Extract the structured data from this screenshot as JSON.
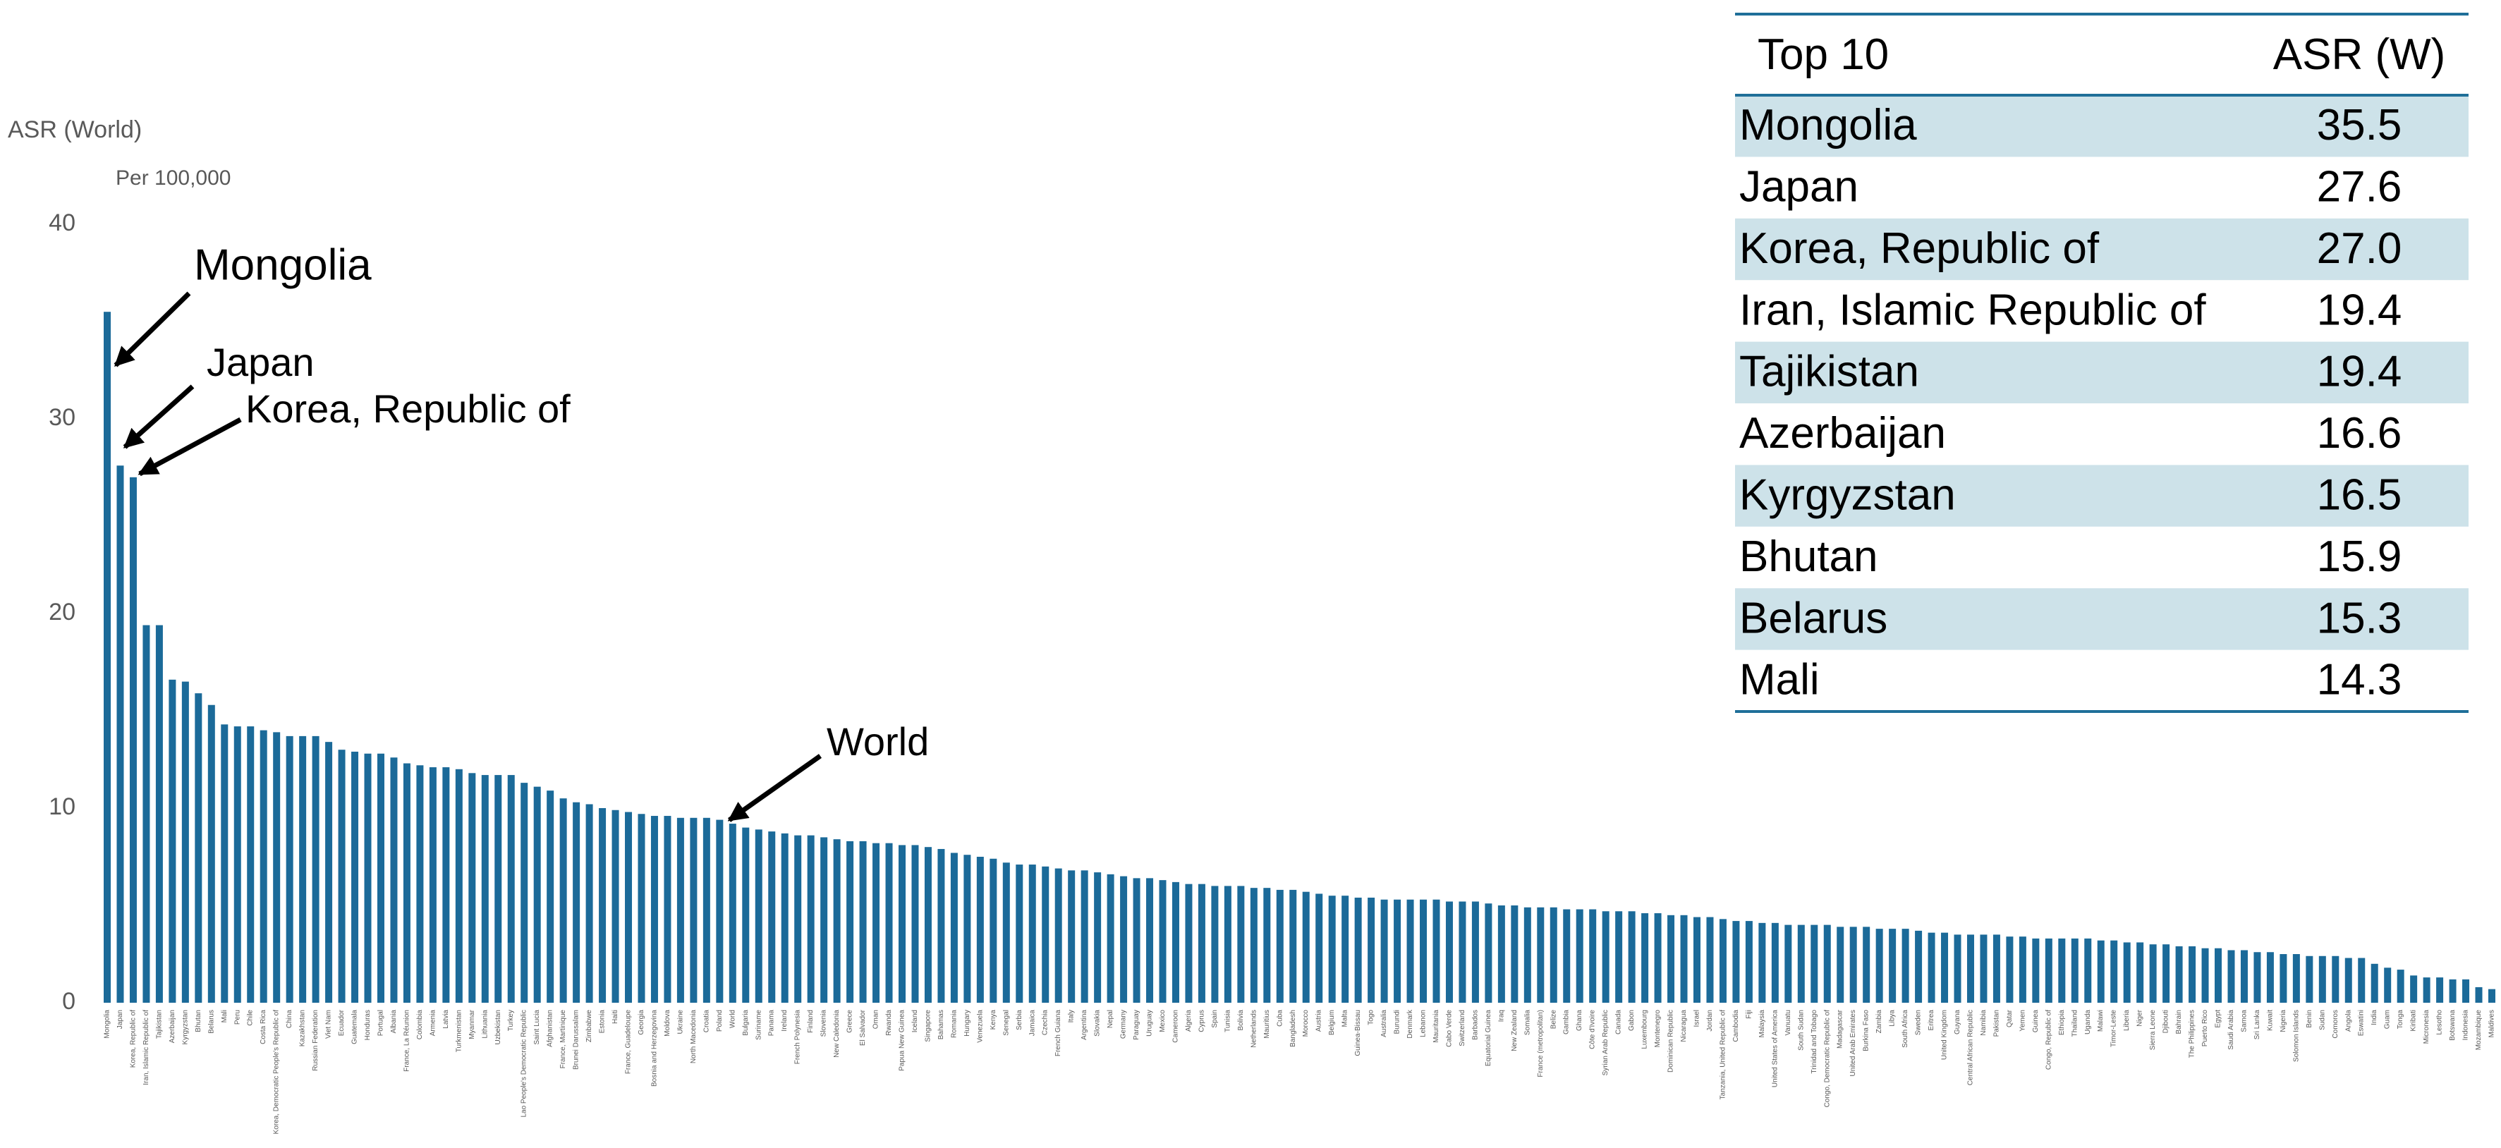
{
  "chart_data": {
    "type": "bar",
    "y_label": "ASR (World)",
    "unit_label": "Per 100,000",
    "color": "#1b6a99",
    "ylim": [
      0,
      40
    ],
    "yticks": [
      0,
      10,
      20,
      30,
      40
    ],
    "annotations": [
      "Mongolia",
      "Japan",
      "Korea, Republic of",
      "World"
    ],
    "categories": [
      "Mongolia",
      "Japan",
      "Korea, Republic of",
      "Iran, Islamic Republic of",
      "Tajikistan",
      "Azerbaijan",
      "Kyrgyzstan",
      "Bhutan",
      "Belarus",
      "Mali",
      "Peru",
      "Chile",
      "Costa Rica",
      "Korea, Democratic People's Republic of",
      "China",
      "Kazakhstan",
      "Russian Federation",
      "Viet Nam",
      "Ecuador",
      "Guatemala",
      "Honduras",
      "Portugal",
      "Albania",
      "France, La Réunion",
      "Colombia",
      "Armenia",
      "Latvia",
      "Turkmenistan",
      "Myanmar",
      "Lithuania",
      "Uzbekistan",
      "Turkey",
      "Lao People's Democratic Republic",
      "Saint Lucia",
      "Afghanistan",
      "France, Martinique",
      "Brunei Darussalam",
      "Zimbabwe",
      "Estonia",
      "Haiti",
      "France, Guadeloupe",
      "Georgia",
      "Bosnia and Herzegovina",
      "Moldova",
      "Ukraine",
      "North Macedonia",
      "Croatia",
      "Poland",
      "World",
      "Bulgaria",
      "Suriname",
      "Panama",
      "Ireland",
      "French Polynesia",
      "Finland",
      "Slovenia",
      "New Caledonia",
      "Greece",
      "El Salvador",
      "Oman",
      "Rwanda",
      "Papua New Guinea",
      "Iceland",
      "Singapore",
      "Bahamas",
      "Romania",
      "Hungary",
      "Venezuela",
      "Kenya",
      "Senegal",
      "Serbia",
      "Jamaica",
      "Czechia",
      "French Guiana",
      "Italy",
      "Argentina",
      "Slovakia",
      "Nepal",
      "Germany",
      "Paraguay",
      "Uruguay",
      "Mexico",
      "Cameroon",
      "Algeria",
      "Cyprus",
      "Spain",
      "Tunisia",
      "Bolivia",
      "Netherlands",
      "Mauritius",
      "Cuba",
      "Bangladesh",
      "Morocco",
      "Austria",
      "Belgium",
      "Malta",
      "Guinea-Bissau",
      "Togo",
      "Australia",
      "Burundi",
      "Denmark",
      "Lebanon",
      "Mauritania",
      "Cabo Verde",
      "Switzerland",
      "Barbados",
      "Equatorial Guinea",
      "Iraq",
      "New Zealand",
      "Somalia",
      "France (metropolitan)",
      "Belize",
      "Gambia",
      "Ghana",
      "Côte d'Ivoire",
      "Syrian Arab Republic",
      "Canada",
      "Gabon",
      "Luxembourg",
      "Montenegro",
      "Dominican Republic",
      "Nicaragua",
      "Israel",
      "Jordan",
      "Tanzania, United Republic of",
      "Cambodia",
      "Fiji",
      "Malaysia",
      "United States of America",
      "Vanuatu",
      "South Sudan",
      "Trinidad and Tobago",
      "Congo, Democratic Republic of",
      "Madagascar",
      "United Arab Emirates",
      "Burkina Faso",
      "Zambia",
      "Libya",
      "South Africa",
      "Sweden",
      "Eritrea",
      "United Kingdom",
      "Guyana",
      "Central African Republic",
      "Namibia",
      "Pakistan",
      "Qatar",
      "Yemen",
      "Guinea",
      "Congo, Republic of",
      "Ethiopia",
      "Thailand",
      "Uganda",
      "Malawi",
      "Timor-Leste",
      "Liberia",
      "Niger",
      "Sierra Leone",
      "Djibouti",
      "Bahrain",
      "The Philippines",
      "Puerto Rico",
      "Egypt",
      "Saudi Arabia",
      "Samoa",
      "Sri Lanka",
      "Kuwait",
      "Nigeria",
      "Solomon Islands",
      "Benin",
      "Sudan",
      "Comoros",
      "Angola",
      "Eswatini",
      "India",
      "Guam",
      "Tonga",
      "Kiribati",
      "Micronesia",
      "Lesotho",
      "Botswana",
      "Indonesia",
      "Mozambique",
      "Maldives"
    ],
    "values": [
      35.5,
      27.6,
      27.0,
      19.4,
      19.4,
      16.6,
      16.5,
      15.9,
      15.3,
      14.3,
      14.2,
      14.2,
      14.0,
      13.9,
      13.7,
      13.7,
      13.7,
      13.4,
      13.0,
      12.9,
      12.8,
      12.8,
      12.6,
      12.3,
      12.2,
      12.1,
      12.1,
      12.0,
      11.8,
      11.7,
      11.7,
      11.7,
      11.3,
      11.1,
      10.9,
      10.5,
      10.3,
      10.2,
      10.0,
      9.9,
      9.8,
      9.7,
      9.6,
      9.6,
      9.5,
      9.5,
      9.5,
      9.4,
      9.2,
      9.0,
      8.9,
      8.8,
      8.7,
      8.6,
      8.6,
      8.5,
      8.4,
      8.3,
      8.3,
      8.2,
      8.2,
      8.1,
      8.1,
      8.0,
      7.9,
      7.7,
      7.6,
      7.5,
      7.4,
      7.2,
      7.1,
      7.1,
      7.0,
      6.9,
      6.8,
      6.8,
      6.7,
      6.6,
      6.5,
      6.4,
      6.4,
      6.3,
      6.2,
      6.1,
      6.1,
      6.0,
      6.0,
      6.0,
      5.9,
      5.9,
      5.8,
      5.8,
      5.7,
      5.6,
      5.5,
      5.5,
      5.4,
      5.4,
      5.3,
      5.3,
      5.3,
      5.3,
      5.3,
      5.2,
      5.2,
      5.2,
      5.1,
      5.0,
      5.0,
      4.9,
      4.9,
      4.9,
      4.8,
      4.8,
      4.8,
      4.7,
      4.7,
      4.7,
      4.6,
      4.6,
      4.5,
      4.5,
      4.4,
      4.4,
      4.3,
      4.2,
      4.2,
      4.1,
      4.1,
      4.0,
      4.0,
      4.0,
      4.0,
      3.9,
      3.9,
      3.9,
      3.8,
      3.8,
      3.8,
      3.7,
      3.6,
      3.6,
      3.5,
      3.5,
      3.5,
      3.5,
      3.4,
      3.4,
      3.3,
      3.3,
      3.3,
      3.3,
      3.3,
      3.2,
      3.2,
      3.1,
      3.1,
      3.0,
      3.0,
      2.9,
      2.9,
      2.8,
      2.8,
      2.7,
      2.7,
      2.6,
      2.6,
      2.5,
      2.5,
      2.4,
      2.4,
      2.4,
      2.3,
      2.3,
      2.0,
      1.8,
      1.7,
      1.4,
      1.3,
      1.3,
      1.2,
      1.2,
      0.8,
      0.7
    ]
  },
  "table": {
    "header": [
      "Top 10",
      "ASR (W)"
    ],
    "rows": [
      [
        "Mongolia",
        "35.5"
      ],
      [
        "Japan",
        "27.6"
      ],
      [
        "Korea, Republic of",
        "27.0"
      ],
      [
        "Iran, Islamic Republic of",
        "19.4"
      ],
      [
        "Tajikistan",
        "19.4"
      ],
      [
        "Azerbaijan",
        "16.6"
      ],
      [
        "Kyrgyzstan",
        "16.5"
      ],
      [
        "Bhutan",
        "15.9"
      ],
      [
        "Belarus",
        "15.3"
      ],
      [
        "Mali",
        "14.3"
      ]
    ]
  }
}
